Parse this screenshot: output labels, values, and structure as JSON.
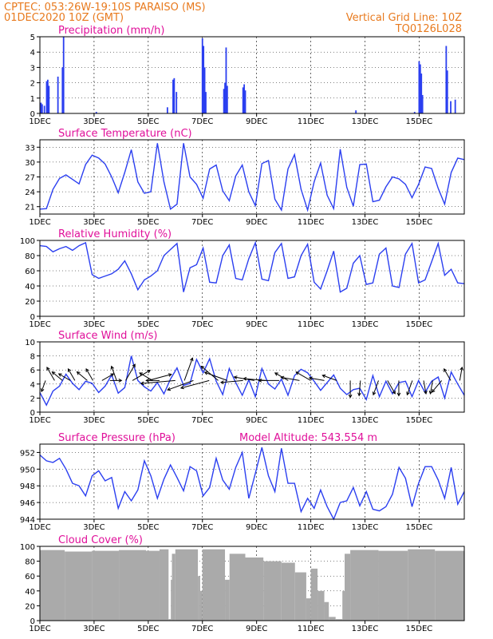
{
  "header": {
    "line1_left": "CPTEC:   053:26W-19:10S   PARAISO (MS)",
    "line2_left": "01DEC2020 10Z (GMT)",
    "line1_right": "Vertical Grid Line: 10Z",
    "line2_right": "TQ0126L028"
  },
  "days": [
    "1DEC",
    "3DEC",
    "5DEC",
    "7DEC",
    "9DEC",
    "11DEC",
    "13DEC",
    "15DEC"
  ],
  "colors": {
    "header": "#e87a1e",
    "title": "#e0109a",
    "series": "#2b3ff0",
    "cloud": "#aaaaaa"
  },
  "chart_data": [
    {
      "type": "bar",
      "title": "Precipitation (mm/h)",
      "ylim": [
        0,
        5
      ],
      "yticks": [
        0,
        1,
        2,
        3,
        4,
        5
      ],
      "x_unit": "hours from 01DEC 10Z",
      "bars": [
        [
          1,
          0.7
        ],
        [
          2,
          0.6
        ],
        [
          4,
          0.5
        ],
        [
          6,
          2.1
        ],
        [
          7,
          2.2
        ],
        [
          8,
          1.8
        ],
        [
          16,
          2.4
        ],
        [
          20,
          3.0
        ],
        [
          21,
          5.0
        ],
        [
          50,
          0.1
        ],
        [
          113,
          0.4
        ],
        [
          118,
          2.2
        ],
        [
          119,
          2.3
        ],
        [
          121,
          1.4
        ],
        [
          144,
          4.9
        ],
        [
          145,
          4.4
        ],
        [
          146,
          3.0
        ],
        [
          147,
          1.4
        ],
        [
          163,
          1.6
        ],
        [
          164,
          2.0
        ],
        [
          165,
          4.3
        ],
        [
          166,
          1.8
        ],
        [
          180,
          1.7
        ],
        [
          181,
          1.9
        ],
        [
          182,
          1.5
        ],
        [
          280,
          0.2
        ],
        [
          332,
          0.1
        ],
        [
          336,
          3.4
        ],
        [
          337,
          3.2
        ],
        [
          338,
          2.6
        ],
        [
          339,
          1.2
        ],
        [
          360,
          4.4
        ],
        [
          361,
          2.8
        ],
        [
          364,
          0.8
        ],
        [
          368,
          0.9
        ]
      ]
    },
    {
      "type": "line",
      "title": "Surface Temperature (nC)",
      "ylim": [
        19.5,
        34.5
      ],
      "yticks": [
        21,
        24,
        27,
        30,
        33
      ],
      "series": [
        {
          "values": [
            20.5,
            20.6,
            24.5,
            26.7,
            27.4,
            26.5,
            25.6,
            29.5,
            31.4,
            30.8,
            29.6,
            27.0,
            23.8,
            27.9,
            32.5,
            26.0,
            23.7,
            24.0,
            33.8,
            26.0,
            20.5,
            21.5,
            33.8,
            27.0,
            25.5,
            22.7,
            28.6,
            29.4,
            24.2,
            22.2,
            27.2,
            29.4,
            24.0,
            21.2,
            29.7,
            30.3,
            22.5,
            20.3,
            28.6,
            31.5,
            24.5,
            20.3,
            26.0,
            29.8,
            23.3,
            20.6,
            32.6,
            24.9,
            21.1,
            29.5,
            29.6,
            22.0,
            22.3,
            25.0,
            27.0,
            26.6,
            25.5,
            22.8,
            25.5,
            29.0,
            28.7,
            24.7,
            21.5,
            27.9,
            30.8,
            30.5
          ]
        }
      ]
    },
    {
      "type": "line",
      "title": "Relative Humidity (%)",
      "ylim": [
        0,
        100
      ],
      "yticks": [
        0,
        20,
        40,
        60,
        80,
        100
      ],
      "series": [
        {
          "values": [
            93,
            92,
            85,
            89,
            92,
            87,
            93,
            97,
            55,
            50,
            53,
            56,
            62,
            73,
            56,
            35,
            48,
            53,
            60,
            80,
            88,
            96,
            32,
            64,
            68,
            90,
            45,
            44,
            80,
            94,
            50,
            48,
            76,
            97,
            49,
            47,
            84,
            96,
            50,
            52,
            80,
            95,
            45,
            36,
            60,
            86,
            32,
            37,
            70,
            80,
            42,
            44,
            82,
            90,
            40,
            38,
            82,
            96,
            44,
            48,
            72,
            96,
            54,
            62,
            44,
            43
          ]
        }
      ]
    },
    {
      "type": "line",
      "title": "Surface Wind (m/s)",
      "ylim": [
        0,
        10
      ],
      "yticks": [
        0,
        2,
        4,
        6,
        8,
        10
      ],
      "series": [
        {
          "values": [
            2.8,
            1.0,
            3.0,
            3.7,
            5.4,
            4.1,
            3.2,
            4.4,
            4.1,
            2.8,
            3.7,
            5.3,
            2.7,
            3.5,
            8.0,
            4.5,
            3.6,
            3.0,
            4.2,
            2.6,
            4.7,
            6.3,
            3.8,
            4.1,
            7.5,
            5.6,
            7.6,
            4.4,
            2.5,
            6.2,
            4.2,
            2.4,
            4.6,
            2.2,
            6.2,
            4.0,
            3.3,
            4.7,
            2.4,
            5.2,
            6.1,
            5.6,
            4.4,
            3.1,
            4.2,
            5.3,
            3.4,
            2.5,
            3.2,
            3.4,
            1.8,
            5.2,
            2.2,
            4.4,
            2.6,
            4.2,
            4.4,
            2.2,
            4.5,
            2.8,
            4.4,
            5.0,
            2.0,
            5.7,
            4.0,
            2.4
          ]
        }
      ],
      "wind_arrows": [
        {
          "t": 5,
          "dir": 200,
          "len": 0.3
        },
        {
          "t": 13,
          "dir": 330,
          "len": 0.5
        },
        {
          "t": 20,
          "dir": 310,
          "len": 0.4
        },
        {
          "t": 27,
          "dir": 300,
          "len": 0.4
        },
        {
          "t": 31,
          "dir": 330,
          "len": 0.4
        },
        {
          "t": 42,
          "dir": 310,
          "len": 0.4
        },
        {
          "t": 47,
          "dir": 330,
          "len": 0.4
        },
        {
          "t": 55,
          "dir": 60,
          "len": 0.4
        },
        {
          "t": 62,
          "dir": 90,
          "len": 0.3
        },
        {
          "t": 68,
          "dir": 340,
          "len": 0.5
        },
        {
          "t": 76,
          "dir": 30,
          "len": 0.7
        },
        {
          "t": 82,
          "dir": 60,
          "len": 0.8
        },
        {
          "t": 96,
          "dir": 75,
          "len": 1.0
        },
        {
          "t": 100,
          "dir": 300,
          "len": 0.5
        },
        {
          "t": 106,
          "dir": 270,
          "len": 0.4
        },
        {
          "t": 120,
          "dir": 265,
          "len": 1.6
        },
        {
          "t": 128,
          "dir": 20,
          "len": 1.0
        },
        {
          "t": 136,
          "dir": 250,
          "len": 1.2
        },
        {
          "t": 150,
          "dir": 255,
          "len": 1.3
        },
        {
          "t": 158,
          "dir": 310,
          "len": 0.9
        },
        {
          "t": 166,
          "dir": 290,
          "len": 1.0
        },
        {
          "t": 180,
          "dir": 265,
          "len": 0.9
        },
        {
          "t": 190,
          "dir": 280,
          "len": 0.8
        },
        {
          "t": 200,
          "dir": 275,
          "len": 0.9
        },
        {
          "t": 212,
          "dir": 270,
          "len": 0.8
        },
        {
          "t": 220,
          "dir": 300,
          "len": 0.5
        },
        {
          "t": 230,
          "dir": 280,
          "len": 0.7
        },
        {
          "t": 240,
          "dir": 300,
          "len": 0.6
        },
        {
          "t": 252,
          "dir": 280,
          "len": 0.5
        },
        {
          "t": 263,
          "dir": 290,
          "len": 0.5
        },
        {
          "t": 275,
          "dir": 180,
          "len": 0.6
        },
        {
          "t": 284,
          "dir": 185,
          "len": 0.5
        },
        {
          "t": 300,
          "dir": 200,
          "len": 0.5
        },
        {
          "t": 308,
          "dir": 150,
          "len": 0.5
        },
        {
          "t": 318,
          "dir": 180,
          "len": 0.5
        },
        {
          "t": 330,
          "dir": 200,
          "len": 0.5
        },
        {
          "t": 340,
          "dir": 170,
          "len": 0.4
        },
        {
          "t": 348,
          "dir": 190,
          "len": 0.4
        },
        {
          "t": 356,
          "dir": 220,
          "len": 0.5
        },
        {
          "t": 364,
          "dir": 330,
          "len": 0.4
        },
        {
          "t": 372,
          "dir": 10,
          "len": 0.4
        }
      ]
    },
    {
      "type": "line",
      "title": "Surface Pressure (hPa)",
      "annotation": "Model Altitude: 543.554  m",
      "ylim": [
        944,
        953
      ],
      "yticks": [
        944,
        946,
        948,
        950,
        952
      ],
      "series": [
        {
          "values": [
            951.7,
            951.0,
            950.8,
            951.3,
            950.0,
            948.3,
            948.0,
            946.8,
            949.2,
            949.8,
            948.6,
            949.0,
            945.3,
            947.3,
            946.2,
            947.5,
            951.0,
            949.2,
            946.5,
            948.8,
            950.5,
            949.0,
            947.4,
            950.3,
            949.8,
            946.8,
            947.8,
            951.3,
            948.7,
            947.6,
            950.2,
            952.0,
            946.5,
            949.5,
            952.6,
            949.2,
            947.3,
            952.5,
            948.3,
            948.3,
            944.9,
            946.5,
            945.3,
            947.5,
            945.5,
            944.0,
            946.0,
            946.2,
            947.8,
            945.6,
            947.3,
            945.2,
            945.0,
            945.5,
            947.0,
            950.2,
            948.9,
            945.5,
            948.3,
            950.3,
            950.3,
            948.7,
            946.5,
            950.2,
            945.8,
            947.3
          ]
        }
      ]
    },
    {
      "type": "bar",
      "title": "Cloud Cover (%)",
      "ylim": [
        0,
        100
      ],
      "yticks": [
        0,
        20,
        40,
        60,
        80,
        100
      ],
      "segments": [
        [
          0,
          22,
          95
        ],
        [
          22,
          46,
          93
        ],
        [
          46,
          70,
          94
        ],
        [
          70,
          94,
          95
        ],
        [
          94,
          106,
          94
        ],
        [
          106,
          114,
          96
        ],
        [
          114,
          116,
          2
        ],
        [
          116,
          117,
          55
        ],
        [
          117,
          120,
          90
        ],
        [
          120,
          140,
          96
        ],
        [
          140,
          142,
          60
        ],
        [
          142,
          144,
          40
        ],
        [
          144,
          164,
          96
        ],
        [
          164,
          168,
          55
        ],
        [
          168,
          182,
          90
        ],
        [
          182,
          198,
          85
        ],
        [
          198,
          214,
          80
        ],
        [
          214,
          226,
          78
        ],
        [
          226,
          236,
          65
        ],
        [
          236,
          240,
          30
        ],
        [
          240,
          246,
          70
        ],
        [
          246,
          252,
          40
        ],
        [
          252,
          256,
          25
        ],
        [
          256,
          262,
          5
        ],
        [
          262,
          268,
          2
        ],
        [
          268,
          270,
          40
        ],
        [
          270,
          275,
          90
        ],
        [
          275,
          300,
          95
        ],
        [
          300,
          326,
          94
        ],
        [
          326,
          350,
          96
        ],
        [
          350,
          376,
          94
        ]
      ]
    }
  ]
}
